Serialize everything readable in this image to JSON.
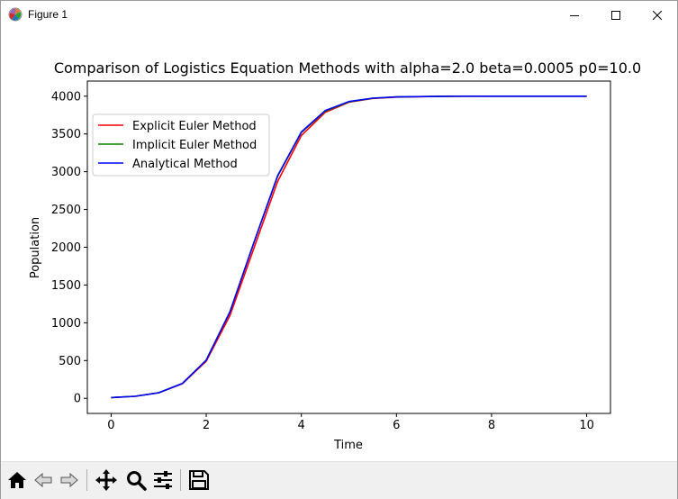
{
  "window": {
    "title": "Figure 1",
    "icons": {
      "app": "matplotlib-icon",
      "minimize": "minimize-icon",
      "maximize": "maximize-icon",
      "close": "close-icon"
    }
  },
  "toolbar": {
    "buttons": [
      {
        "name": "home-button",
        "icon": "home-icon"
      },
      {
        "name": "back-button",
        "icon": "back-arrow-icon"
      },
      {
        "name": "forward-button",
        "icon": "forward-arrow-icon"
      },
      {
        "name": "pan-button",
        "icon": "move-icon"
      },
      {
        "name": "zoom-button",
        "icon": "zoom-icon"
      },
      {
        "name": "configure-subplots-button",
        "icon": "sliders-icon"
      },
      {
        "name": "save-button",
        "icon": "save-icon"
      }
    ]
  },
  "chart_data": {
    "type": "line",
    "title": "Comparison of Logistics Equation Methods with alpha=2.0 beta=0.0005 p0=10.0",
    "xlabel": "Time",
    "ylabel": "Population",
    "xlim": [
      -0.5,
      10.5
    ],
    "ylim": [
      -200,
      4200
    ],
    "xticks": [
      0,
      2,
      4,
      6,
      8,
      10
    ],
    "yticks": [
      0,
      500,
      1000,
      1500,
      2000,
      2500,
      3000,
      3500,
      4000
    ],
    "grid": false,
    "legend_position": "upper-left",
    "x": [
      0,
      0.5,
      1.0,
      1.5,
      2.0,
      2.5,
      3.0,
      3.5,
      4.0,
      4.5,
      5.0,
      5.5,
      6.0,
      7.0,
      8.0,
      9.0,
      10.0
    ],
    "series": [
      {
        "name": "Explicit Euler Method",
        "color": "#ff0000",
        "values": [
          10,
          27,
          73,
          194,
          490,
          1100,
          1985,
          2870,
          3480,
          3785,
          3920,
          3970,
          3988,
          3998,
          4000,
          4000,
          4000
        ]
      },
      {
        "name": "Implicit Euler Method",
        "color": "#008000",
        "values": [
          10,
          27,
          74,
          198,
          505,
          1150,
          2060,
          2940,
          3520,
          3800,
          3925,
          3972,
          3990,
          3999,
          4000,
          4000,
          4000
        ]
      },
      {
        "name": "Analytical Method",
        "color": "#0000ff",
        "values": [
          10,
          27,
          73,
          197,
          505,
          1147,
          2059,
          2947,
          3526,
          3809,
          3929,
          3974,
          3990,
          3999,
          4000,
          4000,
          4000
        ]
      }
    ]
  }
}
